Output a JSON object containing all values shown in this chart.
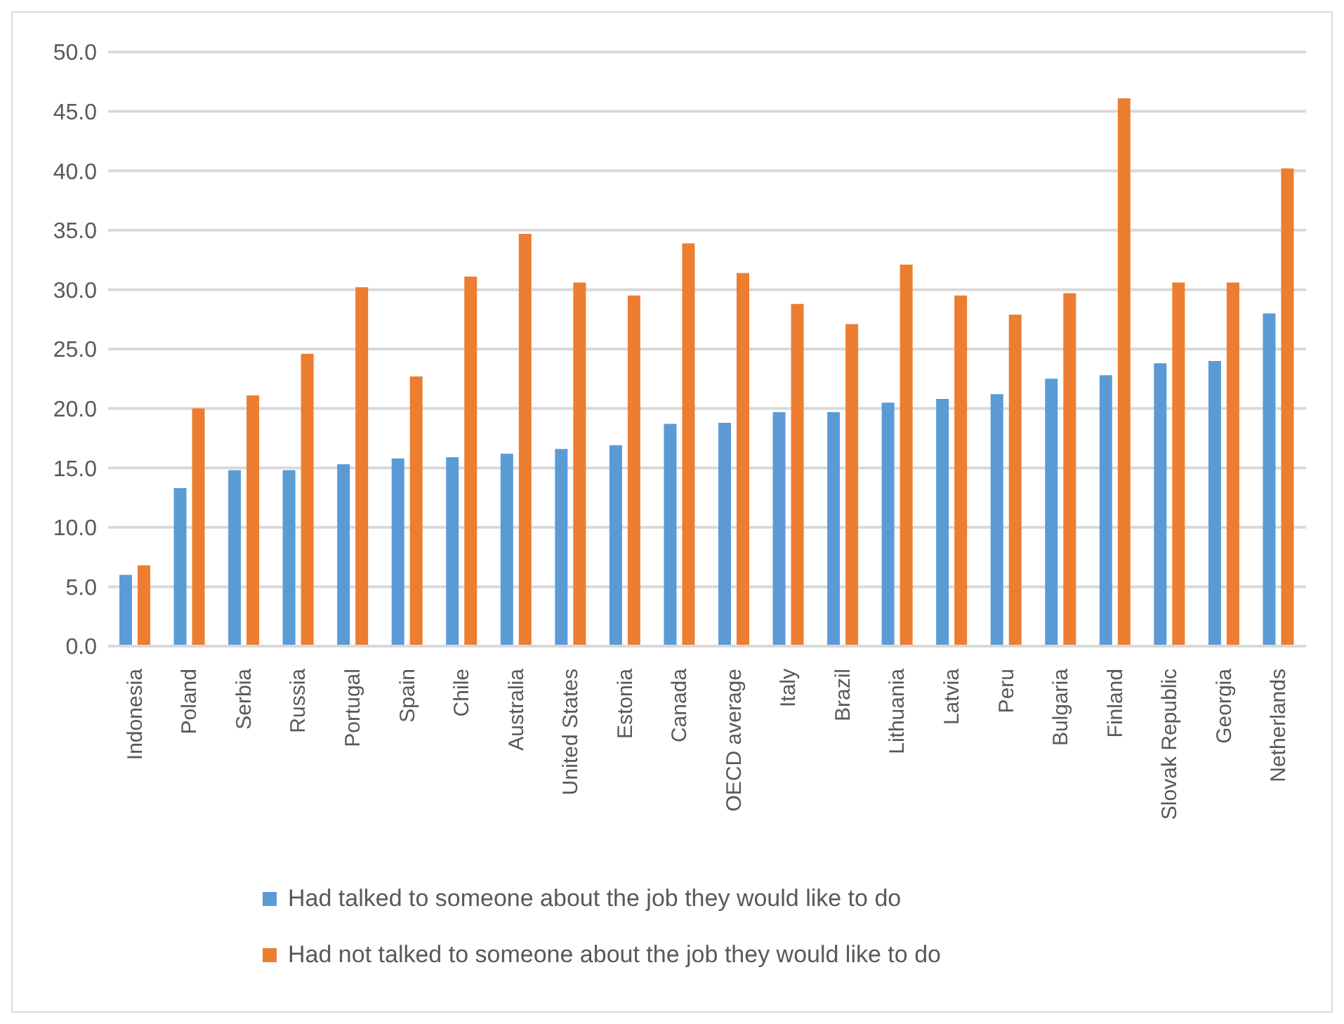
{
  "chart_data": {
    "type": "bar",
    "categories": [
      "Indonesia",
      "Poland",
      "Serbia",
      "Russia",
      "Portugal",
      "Spain",
      "Chile",
      "Australia",
      "United States",
      "Estonia",
      "Canada",
      "OECD average",
      "Italy",
      "Brazil",
      "Lithuania",
      "Latvia",
      "Peru",
      "Bulgaria",
      "Finland",
      "Slovak Republic",
      "Georgia",
      "Netherlands"
    ],
    "series": [
      {
        "name": "Had talked to someone about the job they would like to do",
        "color": "#5b9bd5",
        "values": [
          6.0,
          13.3,
          14.8,
          14.8,
          15.3,
          15.8,
          15.9,
          16.2,
          16.6,
          16.9,
          18.7,
          18.8,
          19.7,
          19.7,
          20.5,
          20.8,
          21.2,
          22.5,
          22.8,
          23.8,
          24.0,
          28.0
        ]
      },
      {
        "name": "Had not talked to someone about the job they would like to do",
        "color": "#ed7d31",
        "values": [
          6.8,
          20.0,
          21.1,
          24.6,
          30.2,
          22.7,
          31.1,
          34.7,
          30.6,
          29.5,
          33.9,
          31.4,
          28.8,
          27.1,
          32.1,
          29.5,
          27.9,
          29.7,
          46.1,
          30.6,
          30.6,
          40.2
        ]
      }
    ],
    "ylim": [
      0,
      50
    ],
    "yticks": [
      {
        "value": 0,
        "label": "0.0"
      },
      {
        "value": 5,
        "label": "5.0"
      },
      {
        "value": 10,
        "label": "10.0"
      },
      {
        "value": 15,
        "label": "15.0"
      },
      {
        "value": 20,
        "label": "20.0"
      },
      {
        "value": 25,
        "label": "25.0"
      },
      {
        "value": 30,
        "label": "30.0"
      },
      {
        "value": 35,
        "label": "35.0"
      },
      {
        "value": 40,
        "label": "40.0"
      },
      {
        "value": 45,
        "label": "45.0"
      },
      {
        "value": 50,
        "label": "50.0"
      }
    ],
    "grid": "y",
    "legend": "bottom"
  }
}
